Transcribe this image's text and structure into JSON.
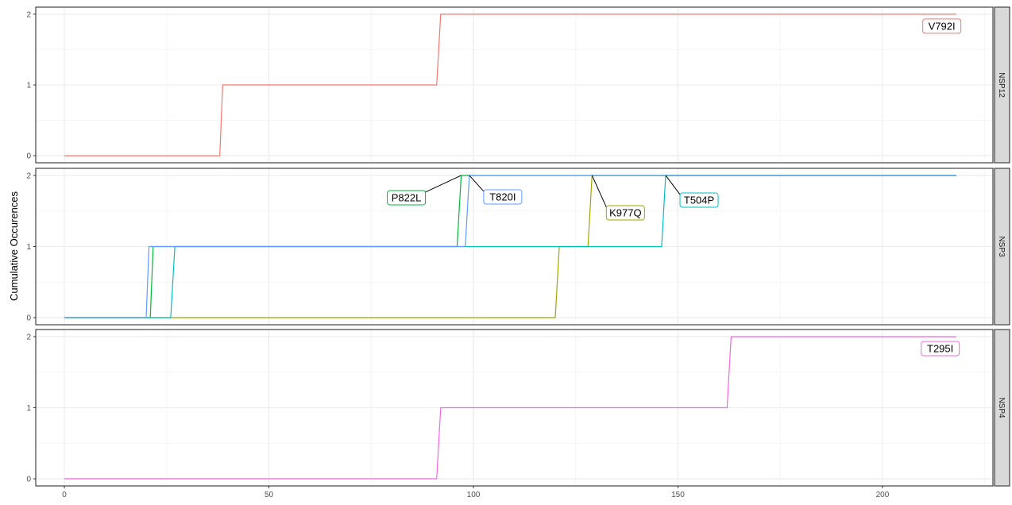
{
  "chart_data": {
    "type": "line",
    "ylabel": "Cumulative Occurences",
    "xlabel": "",
    "xlim": [
      -7,
      227
    ],
    "xticks": [
      0,
      50,
      100,
      150,
      200
    ],
    "xtick_labels": [
      "0",
      "50",
      "100",
      "150",
      "200"
    ],
    "ylim": [
      -0.1,
      2.1
    ],
    "yticks": [
      0,
      1,
      2
    ],
    "ytick_labels": [
      "0",
      "1",
      "2"
    ],
    "grid": true,
    "legend": "none",
    "panels": [
      {
        "strip": "NSP12",
        "series": [
          {
            "name": "V792I",
            "color": "#F8766D",
            "x": [
              0,
              38,
              38.7,
              91,
              92,
              218
            ],
            "y": [
              0,
              0,
              1,
              1,
              2,
              2
            ],
            "label": {
              "text": "V792I",
              "x": 218,
              "y": 2,
              "dx": 0,
              "dy": 0,
              "pos": "below"
            }
          }
        ]
      },
      {
        "strip": "NSP3",
        "series": [
          {
            "name": "K977Q",
            "color": "#A3A500",
            "x": [
              0,
              120,
              121,
              128,
              129,
              218
            ],
            "y": [
              0,
              0,
              1,
              1,
              2,
              2
            ],
            "label": {
              "text": "K977Q",
              "x": 129,
              "y": 2
            }
          },
          {
            "name": "P822L",
            "color": "#00BA38",
            "x": [
              0,
              21,
              21.7,
              96,
              97,
              218
            ],
            "y": [
              0,
              0,
              1,
              1,
              2,
              2
            ],
            "label": {
              "text": "P822L",
              "x": 97,
              "y": 2
            }
          },
          {
            "name": "T504P",
            "color": "#00BFC4",
            "x": [
              0,
              26,
              27,
              146,
              147,
              218
            ],
            "y": [
              0,
              0,
              1,
              1,
              2,
              2
            ],
            "label": {
              "text": "T504P",
              "x": 147,
              "y": 2
            }
          },
          {
            "name": "T820I",
            "color": "#619CFF",
            "x": [
              0,
              20,
              20.7,
              98,
              99,
              218
            ],
            "y": [
              0,
              0,
              1,
              1,
              2,
              2
            ],
            "label": {
              "text": "T820I",
              "x": 99,
              "y": 2
            }
          }
        ]
      },
      {
        "strip": "NSP4",
        "series": [
          {
            "name": "T295I",
            "color": "#F564E3",
            "x": [
              0,
              91,
              92,
              162,
              163,
              218
            ],
            "y": [
              0,
              0,
              1,
              1,
              2,
              2
            ],
            "label": {
              "text": "T295I",
              "x": 218,
              "y": 2
            }
          }
        ]
      }
    ]
  }
}
